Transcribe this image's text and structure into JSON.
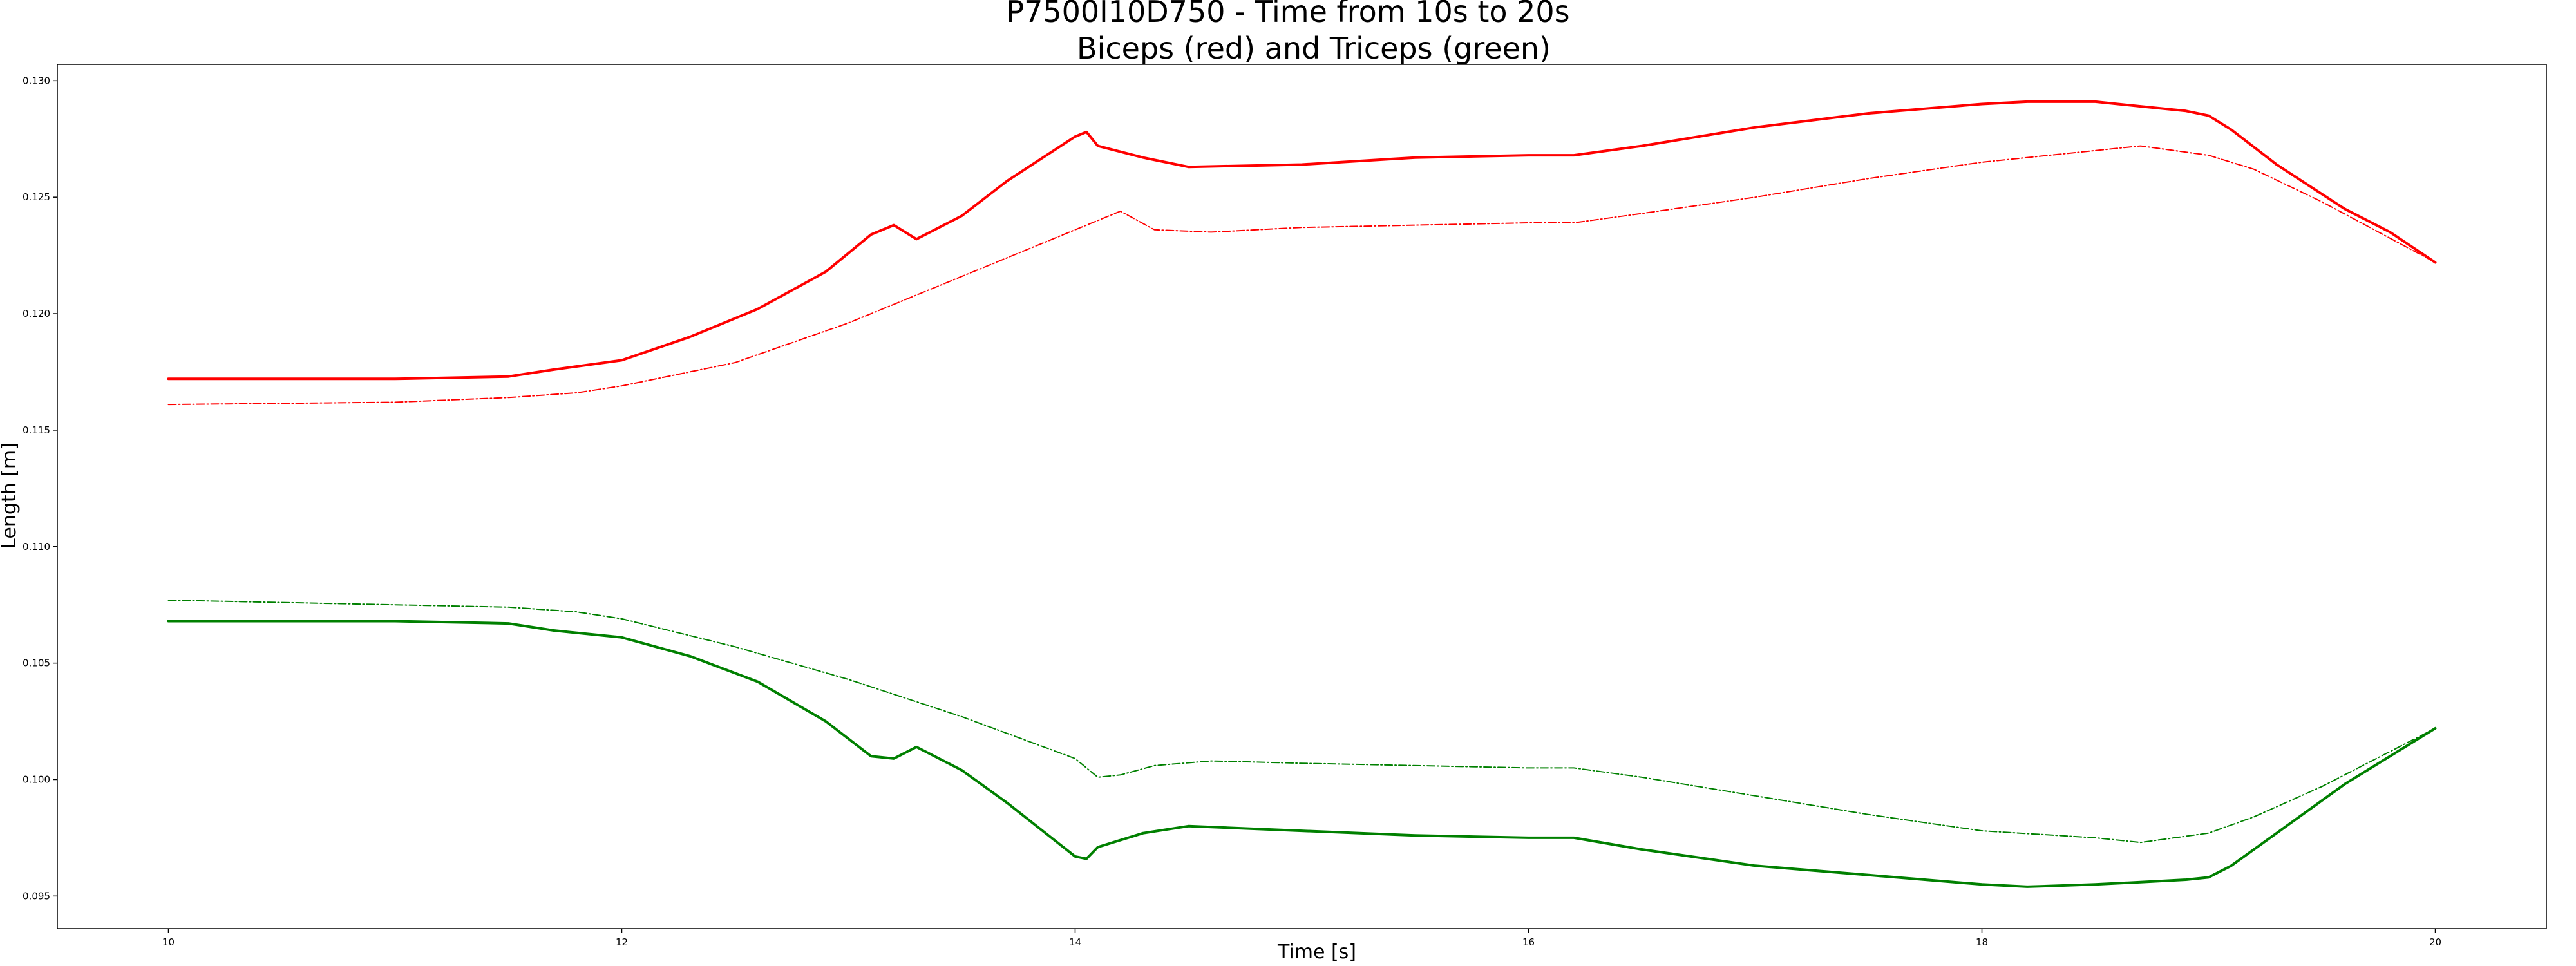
{
  "chart_data": {
    "type": "line",
    "title": "P7500I10D750 - Time from 10s to 20s",
    "subtitle": "Biceps (red) and Triceps (green)",
    "xlabel": "Time [s]",
    "ylabel": "Length [m]",
    "xlim": [
      9.51,
      20.49
    ],
    "ylim": [
      0.0936,
      0.1307
    ],
    "xticks": [
      10,
      12,
      14,
      16,
      18,
      20
    ],
    "xtick_labels": [
      "10",
      "12",
      "14",
      "16",
      "18",
      "20"
    ],
    "yticks": [
      0.095,
      0.1,
      0.105,
      0.11,
      0.115,
      0.12,
      0.125,
      0.13
    ],
    "ytick_labels": [
      "0.095",
      "0.100",
      "0.105",
      "0.110",
      "0.115",
      "0.120",
      "0.125",
      "0.130"
    ],
    "grid": false,
    "series": [
      {
        "color": "#ff0000",
        "style": "solid",
        "x": [
          10.0,
          11.0,
          11.5,
          11.7,
          12.0,
          12.3,
          12.6,
          12.9,
          13.1,
          13.2,
          13.3,
          13.5,
          13.7,
          14.0,
          14.05,
          14.1,
          14.3,
          14.5,
          15.0,
          15.5,
          16.0,
          16.2,
          16.5,
          17.0,
          17.5,
          18.0,
          18.2,
          18.5,
          18.7,
          18.9,
          19.0,
          19.1,
          19.3,
          19.6,
          19.8,
          20.0
        ],
        "y": [
          0.1172,
          0.1172,
          0.1173,
          0.1176,
          0.118,
          0.119,
          0.1202,
          0.1218,
          0.1234,
          0.1238,
          0.1232,
          0.1242,
          0.1257,
          0.1276,
          0.1278,
          0.1272,
          0.1267,
          0.1263,
          0.1264,
          0.1267,
          0.1268,
          0.1268,
          0.1272,
          0.128,
          0.1286,
          0.129,
          0.1291,
          0.1291,
          0.1289,
          0.1287,
          0.1285,
          0.1279,
          0.1264,
          0.1245,
          0.1235,
          0.1222
        ]
      },
      {
        "color": "#ff0000",
        "style": "dashdot",
        "x": [
          10.0,
          11.0,
          11.5,
          11.8,
          12.0,
          12.5,
          13.0,
          13.5,
          14.0,
          14.2,
          14.35,
          14.6,
          15.0,
          16.0,
          16.2,
          16.5,
          17.0,
          17.5,
          18.0,
          18.5,
          18.7,
          19.0,
          19.2,
          19.5,
          20.0
        ],
        "y": [
          0.1161,
          0.1162,
          0.1164,
          0.1166,
          0.1169,
          0.1179,
          0.1196,
          0.1216,
          0.1236,
          0.1244,
          0.1236,
          0.1235,
          0.1237,
          0.1239,
          0.1239,
          0.1243,
          0.125,
          0.1258,
          0.1265,
          0.127,
          0.1272,
          0.1268,
          0.1262,
          0.1248,
          0.1222
        ]
      },
      {
        "color": "#008000",
        "style": "solid",
        "x": [
          10.0,
          11.0,
          11.5,
          11.7,
          12.0,
          12.3,
          12.6,
          12.9,
          13.1,
          13.2,
          13.3,
          13.5,
          13.7,
          14.0,
          14.05,
          14.1,
          14.3,
          14.5,
          15.0,
          15.5,
          16.0,
          16.2,
          16.5,
          17.0,
          17.5,
          18.0,
          18.2,
          18.5,
          18.7,
          18.9,
          19.0,
          19.1,
          19.3,
          19.6,
          19.8,
          20.0
        ],
        "y": [
          0.1068,
          0.1068,
          0.1067,
          0.1064,
          0.1061,
          0.1053,
          0.1042,
          0.1025,
          0.101,
          0.1009,
          0.1014,
          0.1004,
          0.099,
          0.0967,
          0.0966,
          0.0971,
          0.0977,
          0.098,
          0.0978,
          0.0976,
          0.0975,
          0.0975,
          0.097,
          0.0963,
          0.0959,
          0.0955,
          0.0954,
          0.0955,
          0.0956,
          0.0957,
          0.0958,
          0.0963,
          0.0977,
          0.0998,
          0.101,
          0.1022
        ]
      },
      {
        "color": "#008000",
        "style": "dashdot",
        "x": [
          10.0,
          11.0,
          11.5,
          11.8,
          12.0,
          12.5,
          13.0,
          13.5,
          14.0,
          14.1,
          14.2,
          14.35,
          14.6,
          15.0,
          16.0,
          16.2,
          16.5,
          17.0,
          17.5,
          18.0,
          18.5,
          18.7,
          19.0,
          19.2,
          19.5,
          20.0
        ],
        "y": [
          0.1077,
          0.1075,
          0.1074,
          0.1072,
          0.1069,
          0.1057,
          0.1043,
          0.1027,
          0.1009,
          0.1001,
          0.1002,
          0.1006,
          0.1008,
          0.1007,
          0.1005,
          0.1005,
          0.1001,
          0.0993,
          0.0985,
          0.0978,
          0.0975,
          0.0973,
          0.0977,
          0.0984,
          0.0997,
          0.1022
        ]
      }
    ]
  }
}
